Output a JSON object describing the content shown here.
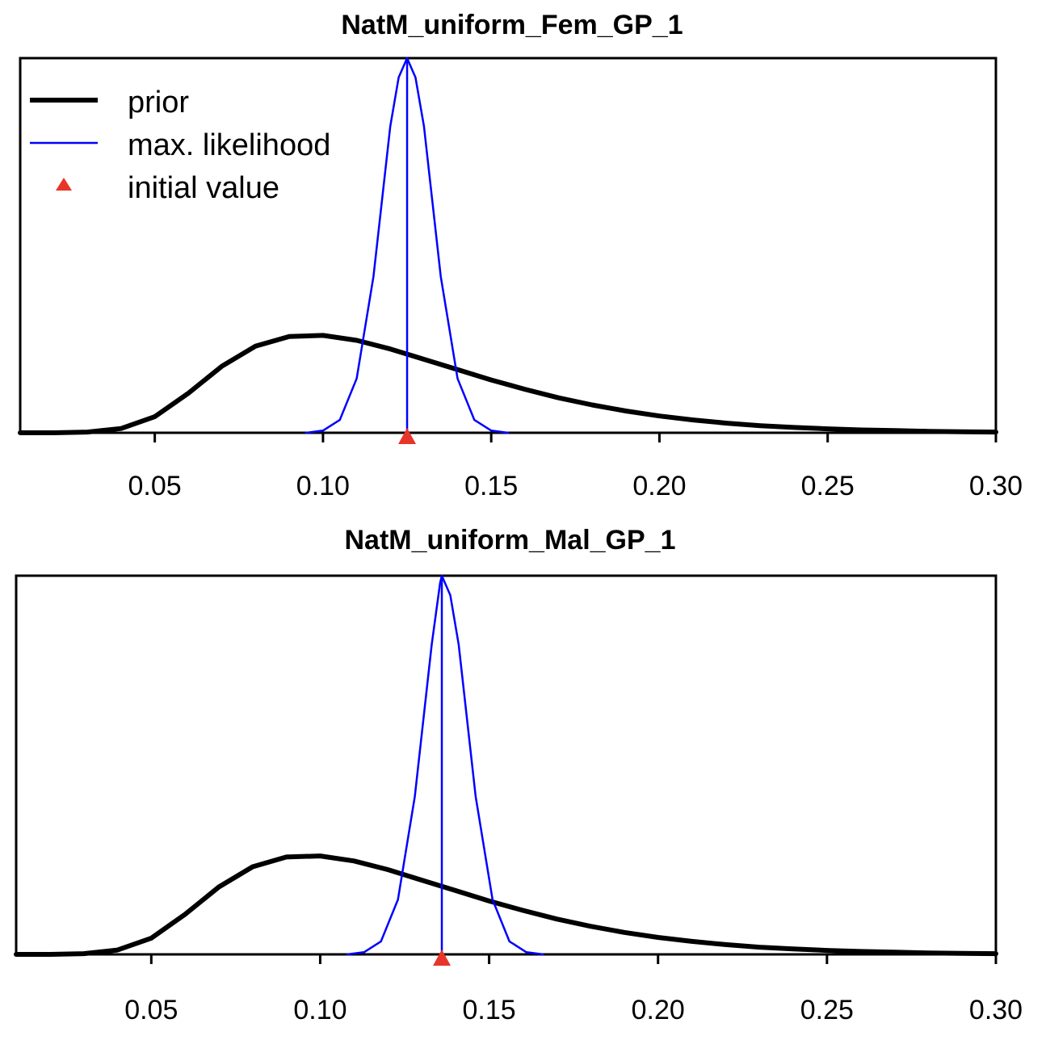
{
  "colors": {
    "prior": "#000000",
    "mle": "#0000ff",
    "initial": "#e8352a",
    "axis": "#000000"
  },
  "legend": {
    "placement": "top-left",
    "items": [
      {
        "label": "prior",
        "kind": "thick-line",
        "color_key": "prior"
      },
      {
        "label": "max. likelihood",
        "kind": "thin-line",
        "color_key": "mle"
      },
      {
        "label": "initial value",
        "kind": "triangle",
        "color_key": "initial"
      }
    ]
  },
  "chart_data": [
    {
      "type": "line",
      "title": "NatM_uniform_Fem_GP_1",
      "xlabel": "",
      "ylabel": "",
      "xlim": [
        0.01,
        0.3
      ],
      "ylim": [
        0,
        1.05
      ],
      "xticks": [
        0.05,
        0.1,
        0.15,
        0.2,
        0.25,
        0.3
      ],
      "xtick_labels": [
        "0.05",
        "0.10",
        "0.15",
        "0.20",
        "0.25",
        "0.30"
      ],
      "grid": false,
      "legend": true,
      "series": [
        {
          "name": "prior",
          "x": [
            0.01,
            0.02,
            0.03,
            0.04,
            0.05,
            0.06,
            0.07,
            0.08,
            0.09,
            0.1,
            0.11,
            0.12,
            0.13,
            0.14,
            0.15,
            0.16,
            0.17,
            0.18,
            0.19,
            0.2,
            0.21,
            0.22,
            0.23,
            0.24,
            0.25,
            0.26,
            0.27,
            0.28,
            0.29,
            0.3
          ],
          "y": [
            0.0,
            0.0,
            0.002,
            0.012,
            0.045,
            0.111,
            0.187,
            0.243,
            0.27,
            0.273,
            0.259,
            0.235,
            0.206,
            0.177,
            0.148,
            0.122,
            0.098,
            0.078,
            0.061,
            0.047,
            0.036,
            0.027,
            0.02,
            0.015,
            0.011,
            0.008,
            0.006,
            0.004,
            0.003,
            0.002
          ]
        },
        {
          "name": "max. likelihood",
          "x": [
            0.095,
            0.1,
            0.105,
            0.11,
            0.115,
            0.12,
            0.1225,
            0.125,
            0.1275,
            0.13,
            0.135,
            0.14,
            0.145,
            0.15,
            0.155
          ],
          "y": [
            0.0,
            0.006,
            0.036,
            0.152,
            0.438,
            0.859,
            0.996,
            1.05,
            0.996,
            0.859,
            0.438,
            0.152,
            0.036,
            0.006,
            0.0
          ]
        }
      ],
      "mle_value": 0.125,
      "initial_value": 0.125
    },
    {
      "type": "line",
      "title": "NatM_uniform_Mal_GP_1",
      "xlabel": "",
      "ylabel": "",
      "xlim": [
        0.01,
        0.3
      ],
      "ylim": [
        0,
        1.05
      ],
      "xticks": [
        0.05,
        0.1,
        0.15,
        0.2,
        0.25,
        0.3
      ],
      "xtick_labels": [
        "0.05",
        "0.10",
        "0.15",
        "0.20",
        "0.25",
        "0.30"
      ],
      "grid": false,
      "legend": false,
      "series": [
        {
          "name": "prior",
          "x": [
            0.01,
            0.02,
            0.03,
            0.04,
            0.05,
            0.06,
            0.07,
            0.08,
            0.09,
            0.1,
            0.11,
            0.12,
            0.13,
            0.14,
            0.15,
            0.16,
            0.17,
            0.18,
            0.19,
            0.2,
            0.21,
            0.22,
            0.23,
            0.24,
            0.25,
            0.26,
            0.27,
            0.28,
            0.29,
            0.3
          ],
          "y": [
            0.0,
            0.0,
            0.002,
            0.012,
            0.045,
            0.111,
            0.187,
            0.243,
            0.27,
            0.273,
            0.259,
            0.235,
            0.206,
            0.177,
            0.148,
            0.122,
            0.098,
            0.078,
            0.061,
            0.047,
            0.036,
            0.027,
            0.02,
            0.015,
            0.011,
            0.008,
            0.006,
            0.004,
            0.003,
            0.002
          ]
        },
        {
          "name": "max. likelihood",
          "x": [
            0.108,
            0.113,
            0.118,
            0.123,
            0.128,
            0.133,
            0.1355,
            0.136,
            0.1385,
            0.141,
            0.146,
            0.151,
            0.156,
            0.161,
            0.166
          ],
          "y": [
            0.0,
            0.006,
            0.036,
            0.152,
            0.438,
            0.859,
            1.03,
            1.05,
            0.996,
            0.859,
            0.438,
            0.152,
            0.036,
            0.006,
            0.0
          ]
        }
      ],
      "mle_value": 0.136,
      "initial_value": 0.136
    }
  ]
}
